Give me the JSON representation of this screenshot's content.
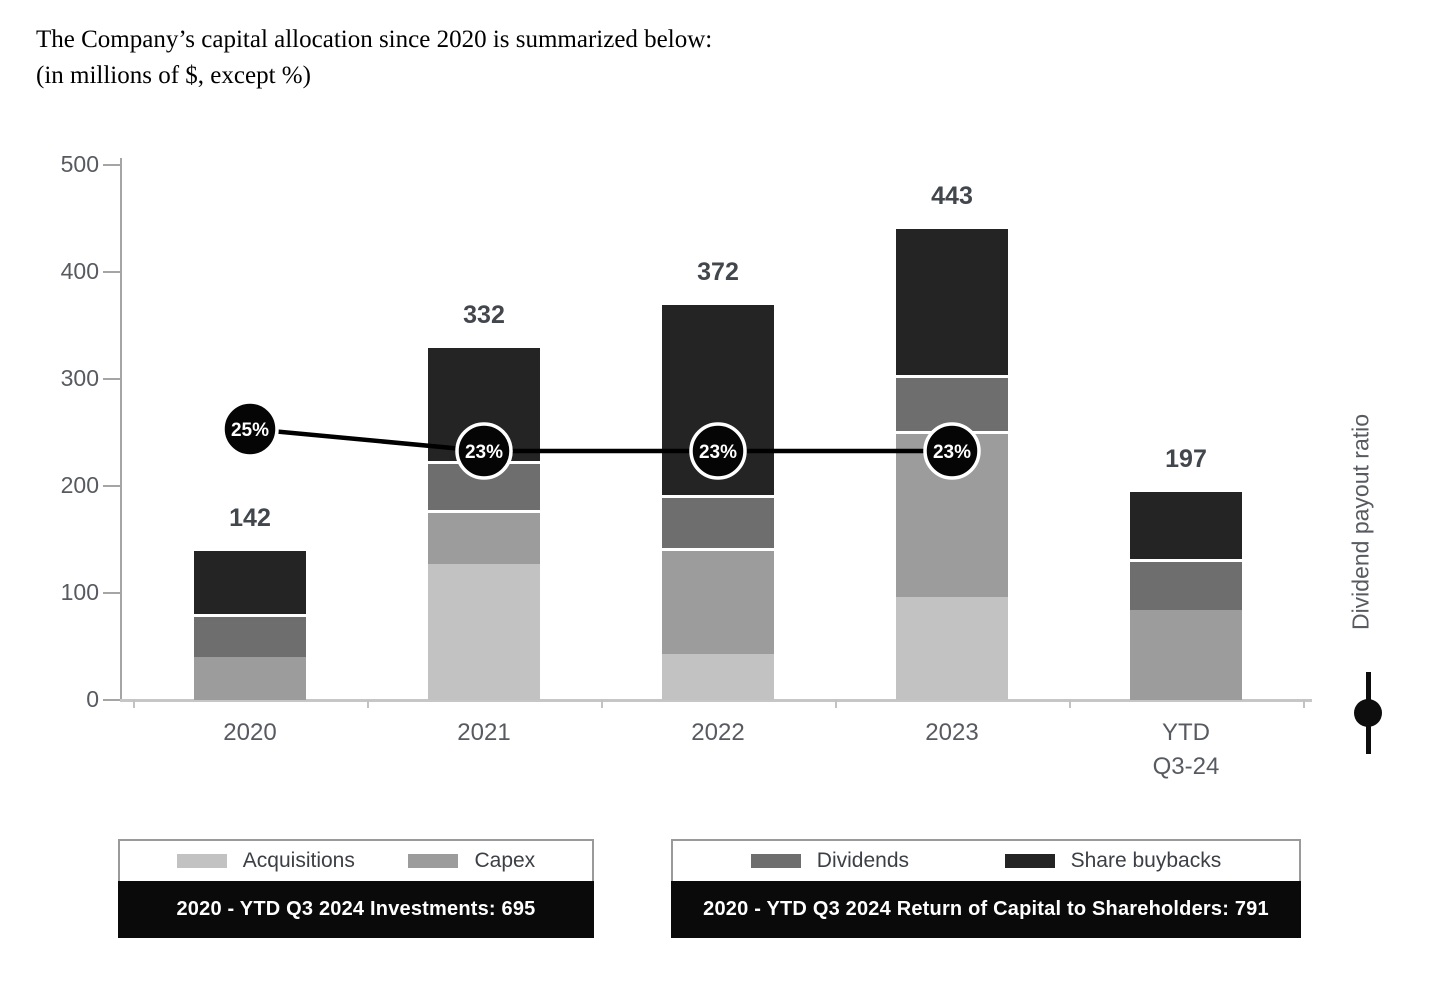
{
  "title": {
    "line1": "The Company’s capital allocation since 2020 is summarized below:",
    "line2": "(in millions of $, except %)"
  },
  "chart_data": {
    "type": "bar",
    "subtype": "stacked-bars-with-line",
    "categories": [
      "2020",
      "2021",
      "2022",
      "2023",
      "YTD Q3-24"
    ],
    "category_label_lines": [
      [
        "2020"
      ],
      [
        "2021"
      ],
      [
        "2022"
      ],
      [
        "2023"
      ],
      [
        "YTD",
        "Q3-24"
      ]
    ],
    "series": [
      {
        "name": "Acquisitions",
        "color": "#c2c2c2",
        "values": [
          0,
          127,
          43,
          96,
          0
        ]
      },
      {
        "name": "Capex",
        "color": "#9c9c9c",
        "values": [
          40,
          51,
          99,
          155,
          84
        ]
      },
      {
        "name": "Dividends",
        "color": "#6e6e6e",
        "values": [
          40,
          45,
          50,
          53,
          48
        ]
      },
      {
        "name": "Share buybacks",
        "color": "#242424",
        "values": [
          62,
          109,
          180,
          139,
          65
        ]
      }
    ],
    "totals": [
      142,
      332,
      372,
      443,
      197
    ],
    "line_series": {
      "name": "Dividend payout ratio",
      "values_pct": [
        25,
        23,
        23,
        23,
        null
      ],
      "point_labels": [
        "25%",
        "23%",
        "23%",
        "23%",
        ""
      ],
      "color": "#000000",
      "marker_fill": "#050505",
      "marker_ring": "#ffffff"
    },
    "y_axis": {
      "min": 0,
      "max": 500,
      "step": 100,
      "tick_labels": [
        "0",
        "100",
        "200",
        "300",
        "400",
        "500"
      ],
      "grid": false
    },
    "right_axis_label": "Dividend payout ratio",
    "legend_position": "bottom"
  },
  "legend": {
    "investments": {
      "items": [
        {
          "label": "Acquisitions",
          "color": "#c2c2c2"
        },
        {
          "label": "Capex",
          "color": "#9c9c9c"
        }
      ],
      "summary": "2020 - YTD Q3 2024 Investments: 695"
    },
    "shareholders": {
      "items": [
        {
          "label": "Dividends",
          "color": "#6e6e6e"
        },
        {
          "label": "Share buybacks",
          "color": "#242424"
        }
      ],
      "summary": "2020 - YTD Q3 2024 Return of Capital to Shareholders: 791"
    }
  }
}
